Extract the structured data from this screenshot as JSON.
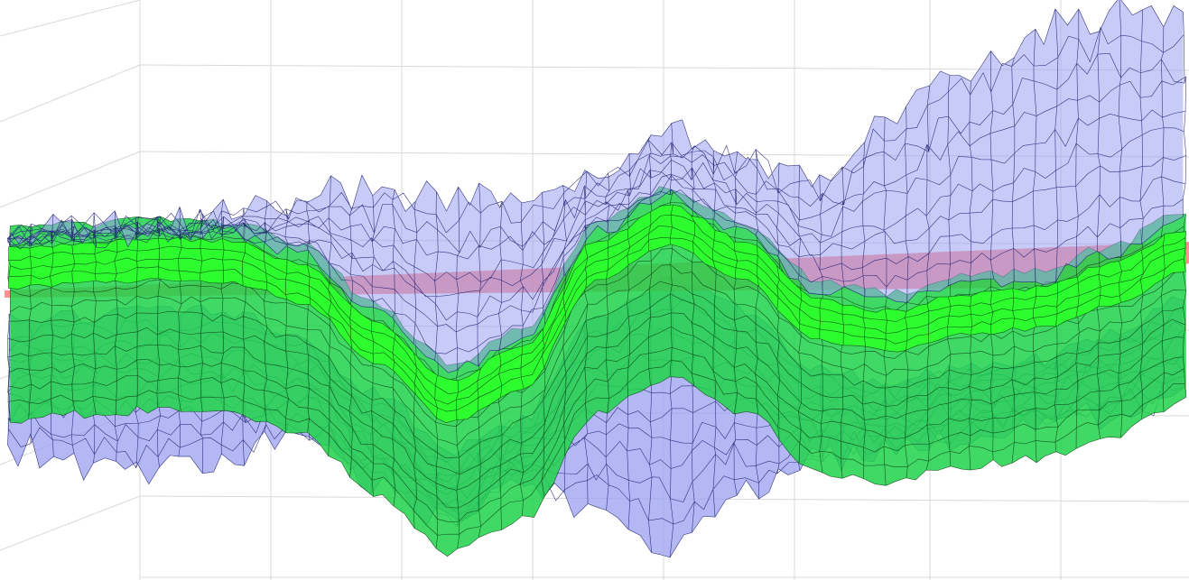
{
  "chart_data": {
    "type": "surface",
    "title": "",
    "xlabel": "",
    "ylabel": "",
    "zlabel": "",
    "grid": true,
    "legend": "none",
    "colors": {
      "background": "#ffffff",
      "grid": "#d9d9d9",
      "outer_surface_fill": "#9aa0f0",
      "outer_surface_edge": "#1a1a6e",
      "inner_surface_fill": "#1fd24a",
      "inner_surface_bright": "#2cff2c",
      "inner_surface_edge": "#0b3d12",
      "reference_plane": "#ff6b6b"
    },
    "series": [
      {
        "role": "upper-envelope",
        "profile": [
          0.05,
          0.06,
          0.08,
          0.12,
          0.2,
          0.25,
          0.22,
          0.18,
          0.3,
          0.45,
          0.38,
          0.3,
          0.55,
          0.75,
          0.92,
          1.0,
          0.96
        ]
      },
      {
        "role": "median",
        "profile": [
          0.02,
          0.04,
          0.06,
          0.05,
          -0.05,
          -0.3,
          -0.55,
          -0.4,
          0.05,
          0.2,
          0.05,
          -0.2,
          -0.25,
          -0.18,
          -0.15,
          -0.05,
          0.1
        ]
      },
      {
        "role": "lower-envelope",
        "profile": [
          -0.55,
          -0.6,
          -0.62,
          -0.58,
          -0.5,
          -0.7,
          -0.85,
          -0.7,
          -0.8,
          -0.95,
          -0.75,
          -0.6,
          -0.55,
          -0.5,
          -0.45,
          -0.4,
          -0.35
        ]
      }
    ],
    "reference_plane_level": 0.0
  }
}
